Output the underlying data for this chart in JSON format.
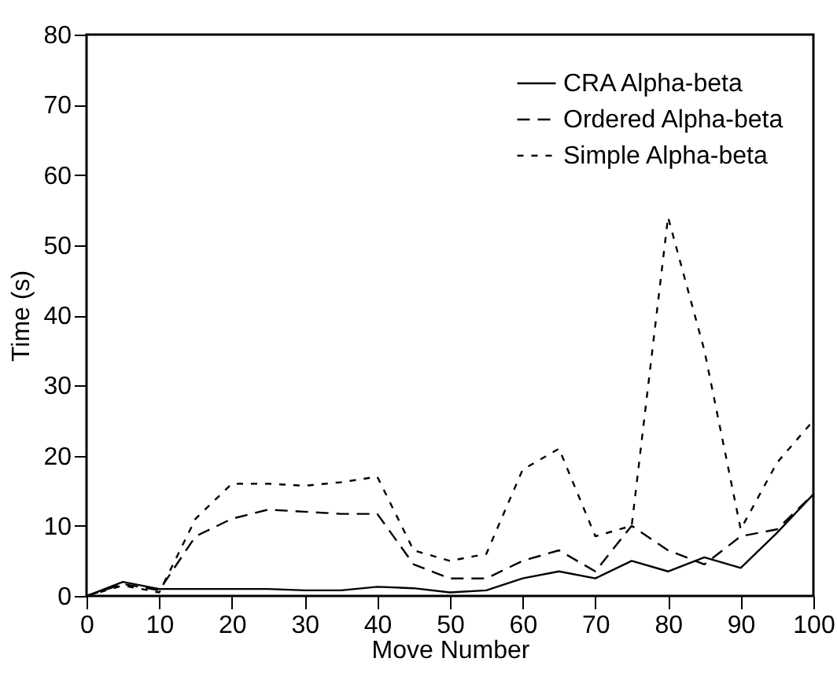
{
  "chart_data": {
    "type": "line",
    "xlabel": "Move Number",
    "ylabel": "Time (s)",
    "x": [
      0,
      5,
      10,
      15,
      20,
      25,
      30,
      35,
      40,
      45,
      50,
      55,
      60,
      65,
      70,
      75,
      80,
      85,
      90,
      95,
      100
    ],
    "series": [
      {
        "name": "CRA Alpha-beta",
        "color": "#000000",
        "line_style": "solid",
        "values": [
          0,
          2,
          1,
          1,
          1,
          1,
          0.8,
          0.8,
          1.3,
          1.1,
          0.5,
          0.8,
          2.5,
          3.5,
          2.5,
          5,
          3.5,
          5.5,
          4,
          9,
          14.5
        ]
      },
      {
        "name": "Ordered Alpha-beta",
        "color": "#000000",
        "line_style": "dashed",
        "values": [
          0,
          1.7,
          0.8,
          8.5,
          11,
          12.3,
          12,
          11.7,
          11.7,
          4.5,
          2.5,
          2.5,
          5,
          6.5,
          3.5,
          10,
          6.5,
          4.5,
          8.5,
          9.5,
          14.5
        ]
      },
      {
        "name": "Simple Alpha-beta",
        "color": "#000000",
        "line_style": "dotted",
        "values": [
          0,
          1.5,
          0.5,
          11,
          16,
          16,
          15.7,
          16.2,
          17,
          6.5,
          5,
          6,
          18,
          21,
          8.5,
          10,
          54,
          35,
          9.5,
          19,
          25
        ]
      }
    ],
    "xlim": [
      0,
      100
    ],
    "xticks": [
      0,
      10,
      20,
      30,
      40,
      50,
      60,
      70,
      80,
      90,
      100
    ],
    "ylim": [
      0,
      80
    ],
    "yticks": [
      0,
      10,
      20,
      30,
      40,
      50,
      60,
      70,
      80
    ],
    "legend": "top right",
    "grid": false
  }
}
